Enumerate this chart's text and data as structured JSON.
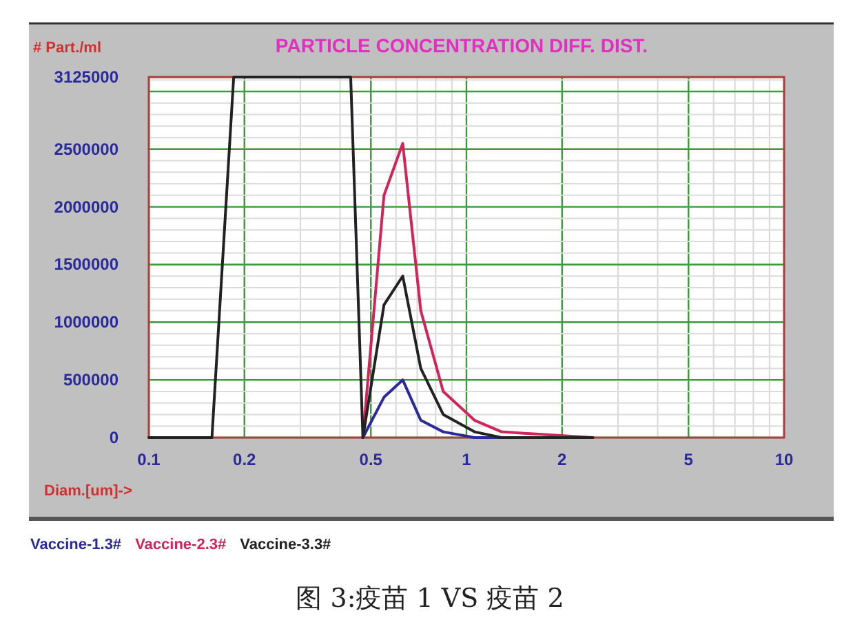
{
  "chart_data": {
    "type": "line",
    "title": "PARTICLE CONCENTRATION DIFF. DIST.",
    "ylabel": "# Part./ml",
    "xlabel": "Diam.[um]->",
    "annotations": [
      "图 3:疫苗 1 VS 疫苗 2"
    ],
    "log": "x",
    "xlim": [
      0.1,
      10
    ],
    "xticks": [
      0.1,
      0.2,
      0.5,
      1,
      2,
      5,
      10
    ],
    "ylim": [
      0,
      3125000
    ],
    "yticks": [
      0,
      500000,
      1000000,
      1500000,
      2000000,
      2500000,
      {
        "value": 3000000,
        "label": null
      },
      3125000
    ],
    "grid": true,
    "legend": "bottom",
    "marker": "none",
    "line_style": "solid",
    "series": [
      {
        "name": "Vaccine-1.3#",
        "color": "#2a2a9a",
        "x": [
          0.472,
          0.55,
          0.63,
          0.718,
          0.845,
          1.06,
          1.29,
          2.5
        ],
        "values": [
          0,
          350000,
          500000,
          150000,
          50000,
          0,
          0,
          0
        ]
      },
      {
        "name": "Vaccine-2.3#",
        "color": "#d0245a",
        "x": [
          0.472,
          0.55,
          0.63,
          0.718,
          0.845,
          1.06,
          1.29,
          2.5
        ],
        "values": [
          0,
          2100000,
          2550000,
          1100000,
          400000,
          150000,
          50000,
          0
        ]
      },
      {
        "name": "Vaccine-3.3#",
        "color": "#222222",
        "x": [
          0.1,
          0.158,
          0.185,
          0.432,
          0.472,
          0.55,
          0.63,
          0.718,
          0.845,
          1.06,
          1.29,
          2.5
        ],
        "values": [
          0,
          0,
          3125000,
          3125000,
          0,
          1150000,
          1400000,
          600000,
          200000,
          50000,
          0,
          0
        ]
      }
    ]
  }
}
